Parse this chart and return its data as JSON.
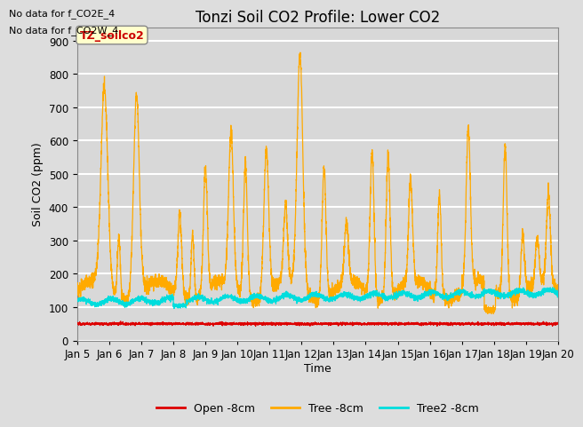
{
  "title": "Tonzi Soil CO2 Profile: Lower CO2",
  "xlabel": "Time",
  "ylabel": "Soil CO2 (ppm)",
  "ylim": [
    0,
    940
  ],
  "yticks": [
    0,
    100,
    200,
    300,
    400,
    500,
    600,
    700,
    800,
    900
  ],
  "background_color": "#e0e0e0",
  "plot_bg_color": "#d8d8d8",
  "grid_color": "#ffffff",
  "no_data_text": [
    "No data for f_CO2E_4",
    "No data for f_CO2W_4"
  ],
  "legend_label_box": "TZ_soilco2",
  "legend_labels": [
    "Open -8cm",
    "Tree -8cm",
    "Tree2 -8cm"
  ],
  "legend_colors": [
    "#dd0000",
    "#ffaa00",
    "#00dddd"
  ],
  "open_color": "#dd0000",
  "tree_color": "#ffaa00",
  "tree2_color": "#00dddd",
  "title_fontsize": 12,
  "axis_fontsize": 9,
  "tick_fontsize": 8.5,
  "xtick_labels": [
    "Jan 5",
    "Jan 6",
    "Jan 7",
    "Jan 8",
    "Jan 9",
    "Jan 10",
    "Jan 11",
    "Jan 12",
    "Jan 13",
    "Jan 14",
    "Jan 15",
    "Jan 16",
    "Jan 17",
    "Jan 18",
    "Jan 19",
    "Jan 20"
  ]
}
